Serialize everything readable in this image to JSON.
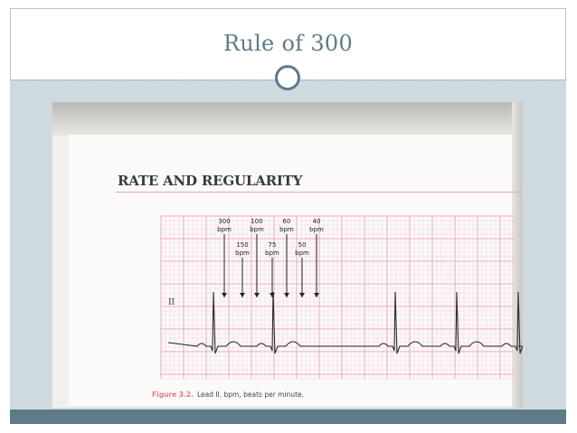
{
  "slide": {
    "title": "Rule of 300"
  },
  "figure": {
    "heading": "RATE AND REGULARITY",
    "lead_label": "II",
    "markers_top": [
      {
        "rate": "300",
        "unit": "bpm"
      },
      {
        "rate": "100",
        "unit": "bpm"
      },
      {
        "rate": "60",
        "unit": "bpm"
      },
      {
        "rate": "40",
        "unit": "bpm"
      }
    ],
    "markers_bottom": [
      {
        "rate": "150",
        "unit": "bpm"
      },
      {
        "rate": "75",
        "unit": "bpm"
      },
      {
        "rate": "50",
        "unit": "bpm"
      }
    ],
    "caption_figure": "Figure 3.2.",
    "caption_text": "Lead II. bpm, beats per minute."
  },
  "colors": {
    "slide_bg": "#cfd9e0",
    "title_text": "#5f7a8a",
    "footer_band": "#5d7a89",
    "ecg_grid_minor": "#f4c9d4",
    "ecg_grid_major": "#e996ab",
    "ecg_trace": "#2a2a2a"
  }
}
